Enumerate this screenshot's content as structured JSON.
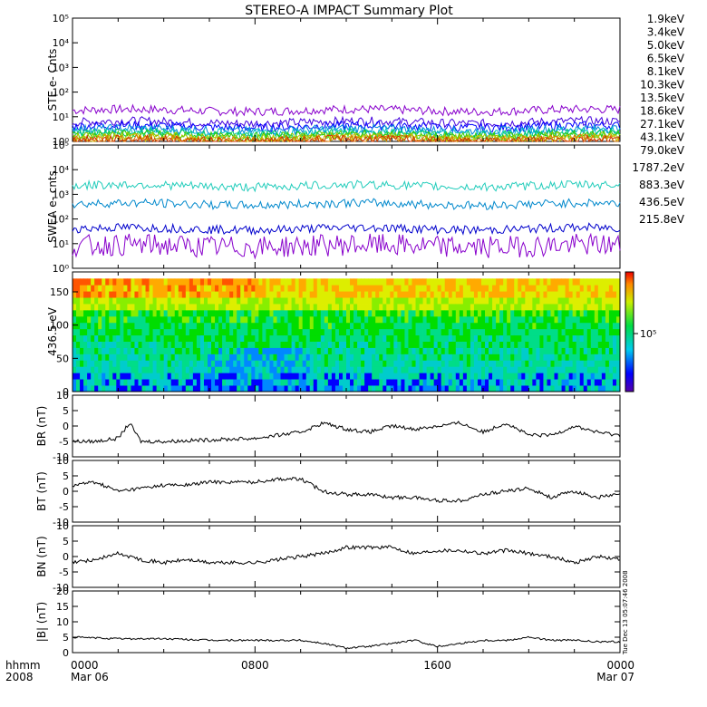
{
  "title": "STEREO-A IMPACT Summary Plot",
  "side_note": "Tue Dec 13 05:07:46 2008",
  "bottom_left": {
    "line1": "hhmm",
    "line2": "2008"
  },
  "colors": {
    "frame": "#000000",
    "ste": [
      "#8800cc",
      "#4400dd",
      "#0000ff",
      "#0088dd",
      "#00bbcc",
      "#00cc66",
      "#33cc00",
      "#99cc00",
      "#ccbb00",
      "#dd7700",
      "#cc3300"
    ],
    "swea": [
      "#8800cc",
      "#0000cc",
      "#0088cc",
      "#22ccbb"
    ]
  },
  "chart_data": [
    {
      "name_tag": "ste",
      "type": "line",
      "ylabel": "STE e- Cnts",
      "yscale": "log",
      "ylim_exp": [
        0,
        5
      ],
      "y_tick_labels": [
        "10⁰",
        "10¹",
        "10²",
        "10³",
        "10⁴",
        "10⁵"
      ],
      "legend": [
        "1.9keV",
        "3.4keV",
        "5.0keV",
        "6.5keV",
        "8.1keV",
        "10.3keV",
        "13.5keV",
        "18.6keV",
        "27.1keV",
        "43.1keV",
        "79.0keV"
      ],
      "levels": [
        18,
        6,
        4,
        3,
        2.4,
        2,
        1.7,
        1.5,
        1.3,
        1.2,
        1.1
      ]
    },
    {
      "name_tag": "swea",
      "type": "line",
      "ylabel": "SWEA e- cnts",
      "yscale": "log",
      "ylim_exp": [
        0,
        5
      ],
      "y_tick_labels": [
        "10⁰",
        "10¹",
        "10²",
        "10³",
        "10⁴",
        "10⁵"
      ],
      "legend": [
        "1787.2eV",
        "883.3eV",
        "436.5eV",
        "215.8eV"
      ],
      "levels": [
        8,
        40,
        400,
        2200
      ]
    },
    {
      "name_tag": "pad",
      "type": "heatmap",
      "ylabel": "436.5 eV",
      "ylim": [
        0,
        180
      ],
      "y_ticks": [
        0,
        50,
        100,
        150
      ],
      "colorbar_label": "10⁵"
    },
    {
      "name_tag": "br",
      "type": "line",
      "ylabel": "BR (nT)",
      "ylim": [
        -10,
        10
      ],
      "y_ticks": [
        -10,
        -5,
        0,
        5,
        10
      ],
      "x": [
        0,
        1,
        2,
        2.5,
        3,
        4,
        6,
        8,
        10,
        11,
        12,
        13,
        14,
        15,
        16,
        17,
        18,
        19,
        20,
        21,
        22,
        23,
        24
      ],
      "values": [
        -5,
        -5,
        -4,
        1,
        -5,
        -5,
        -4.5,
        -4,
        -2,
        1,
        -1,
        -2,
        0,
        -1,
        0,
        1,
        -2,
        1,
        -3,
        -3,
        0,
        -2,
        -3
      ]
    },
    {
      "name_tag": "bt",
      "type": "line",
      "ylabel": "BT (nT)",
      "ylim": [
        -10,
        10
      ],
      "y_ticks": [
        -10,
        -5,
        0,
        5,
        10
      ],
      "x": [
        0,
        1,
        2,
        3,
        4,
        5,
        6,
        7,
        8,
        9,
        10,
        11,
        12,
        13,
        14,
        15,
        16,
        17,
        18,
        19,
        20,
        21,
        22,
        23,
        24
      ],
      "values": [
        2,
        3,
        0,
        1,
        2,
        2,
        3,
        3,
        3,
        4,
        4,
        0,
        -1,
        -1,
        -2,
        -2,
        -3,
        -3,
        -1,
        0,
        1,
        -2,
        0,
        -2,
        -1
      ]
    },
    {
      "name_tag": "bn",
      "type": "line",
      "ylabel": "BN (nT)",
      "ylim": [
        -10,
        10
      ],
      "y_ticks": [
        -10,
        -5,
        0,
        5,
        10
      ],
      "x": [
        0,
        1,
        2,
        3,
        4,
        5,
        6,
        7,
        8,
        9,
        10,
        11,
        12,
        13,
        14,
        15,
        16,
        17,
        18,
        19,
        20,
        21,
        22,
        23,
        24
      ],
      "values": [
        -2,
        -1,
        1,
        -1,
        -2,
        -1,
        -2,
        -2,
        -2,
        -1,
        0,
        1,
        3,
        3,
        3,
        1,
        2,
        2,
        1,
        2,
        1,
        0,
        -2,
        0,
        -1
      ]
    },
    {
      "name_tag": "bmag",
      "type": "line",
      "ylabel": "|B| (nT)",
      "ylim": [
        0,
        20
      ],
      "y_ticks": [
        0,
        5,
        10,
        15,
        20
      ],
      "x": [
        0,
        2,
        4,
        6,
        8,
        10,
        11,
        12,
        13,
        14,
        15,
        16,
        17,
        18,
        19,
        20,
        21,
        22,
        23,
        24
      ],
      "values": [
        5,
        4.5,
        4.5,
        4,
        4,
        4,
        3,
        1.5,
        2,
        3,
        4,
        2,
        3,
        4,
        4,
        5,
        4,
        4,
        3.5,
        3.5
      ]
    }
  ],
  "x_axis": {
    "xlim_hours": [
      0,
      24
    ],
    "ticks": [
      {
        "hour": 0,
        "label": "0000",
        "sub": "Mar 06"
      },
      {
        "hour": 8,
        "label": "0800",
        "sub": ""
      },
      {
        "hour": 16,
        "label": "1600",
        "sub": ""
      },
      {
        "hour": 24,
        "label": "0000",
        "sub": "Mar 07"
      }
    ]
  }
}
